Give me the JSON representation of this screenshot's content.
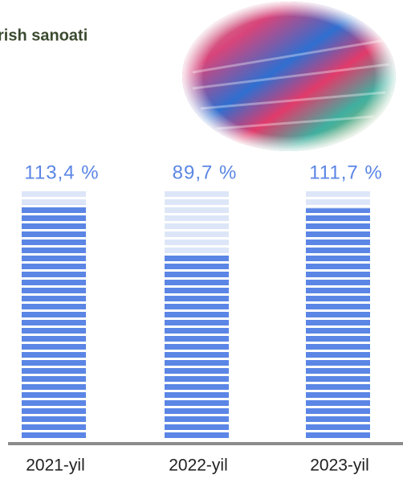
{
  "chart_data": {
    "type": "bar",
    "title": "rish sanoati",
    "categories": [
      "2021-yil",
      "2022-yil",
      "2023-yil"
    ],
    "values": [
      113.4,
      89.7,
      111.7
    ],
    "value_labels": [
      "113,4 %",
      "89,7 %",
      "111,7 %"
    ],
    "color": "#5b86e5",
    "ylim": [
      0,
      120
    ]
  }
}
